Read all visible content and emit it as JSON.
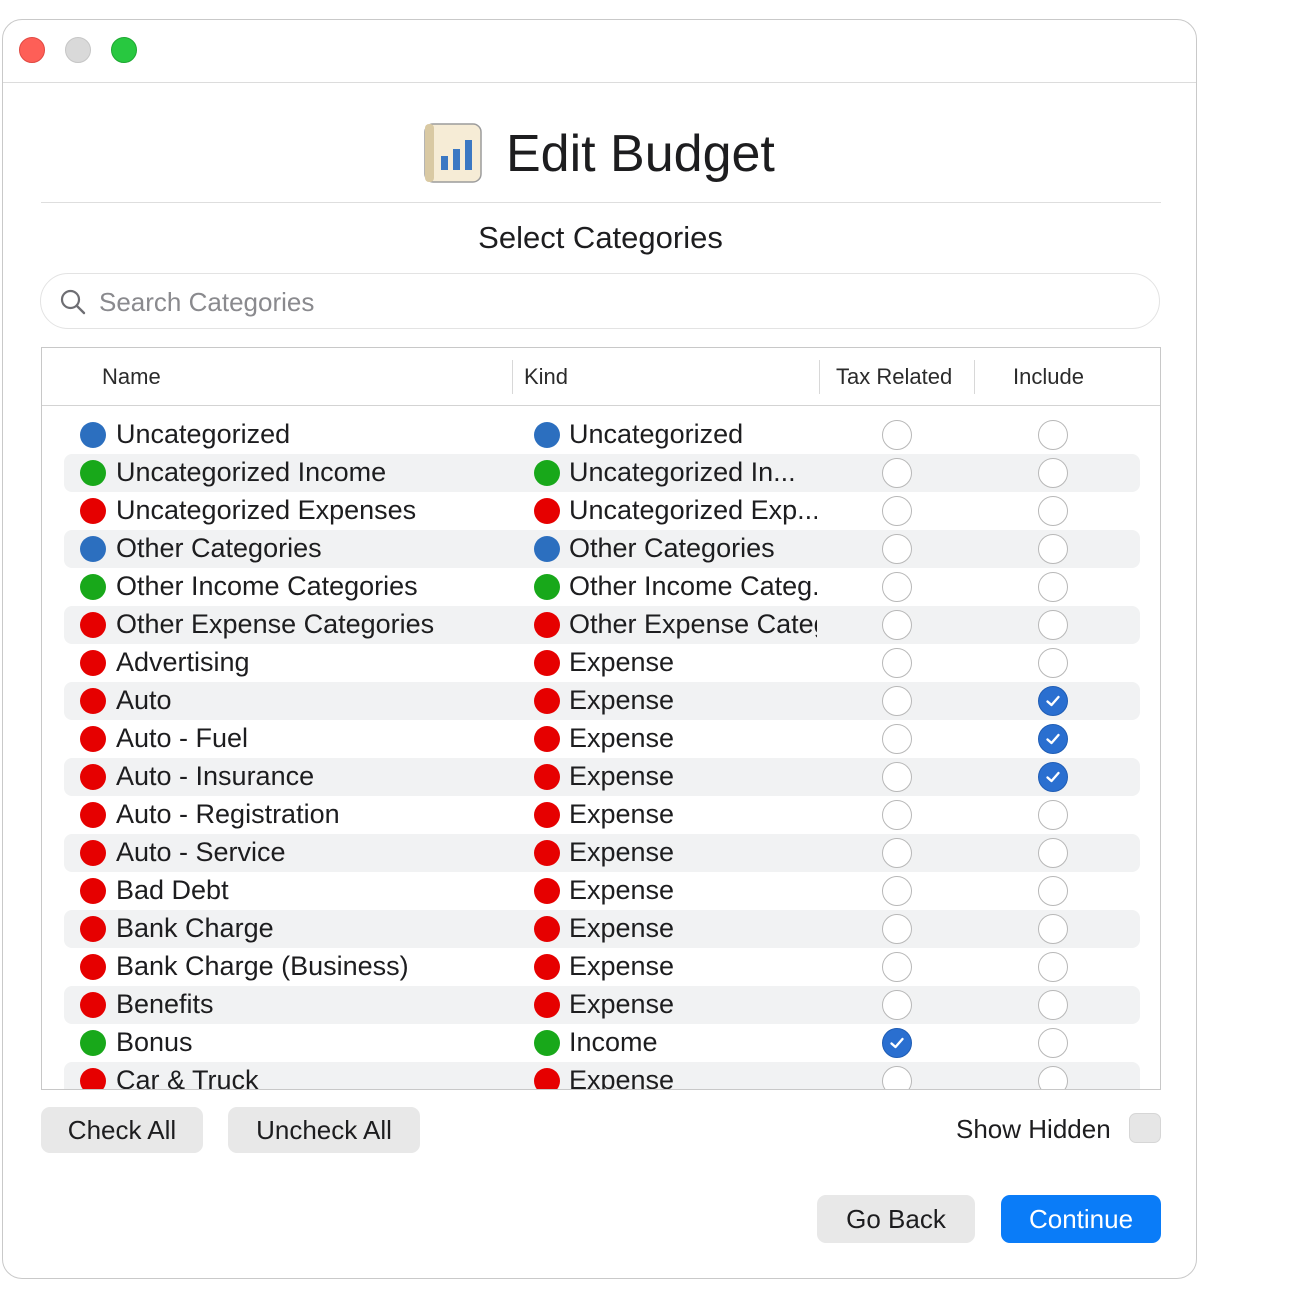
{
  "window": {
    "title": "Edit Budget"
  },
  "header": {
    "title": "Edit Budget",
    "subtitle": "Select Categories"
  },
  "search": {
    "placeholder": "Search Categories",
    "value": ""
  },
  "colors": {
    "blue": "#2c6fbf",
    "green": "#18a81a",
    "red": "#e60000",
    "accent": "#0a7cf8"
  },
  "table": {
    "columns": {
      "name": "Name",
      "kind": "Kind",
      "tax": "Tax Related",
      "include": "Include"
    },
    "rows": [
      {
        "name": "Uncategorized",
        "kind": "Uncategorized",
        "color": "blue",
        "tax": false,
        "include": false
      },
      {
        "name": "Uncategorized Income",
        "kind": "Uncategorized In...",
        "color": "green",
        "tax": false,
        "include": false
      },
      {
        "name": "Uncategorized Expenses",
        "kind": "Uncategorized Exp...",
        "color": "red",
        "tax": false,
        "include": false
      },
      {
        "name": "Other Categories",
        "kind": "Other Categories",
        "color": "blue",
        "tax": false,
        "include": false
      },
      {
        "name": "Other Income Categories",
        "kind": "Other Income Categ.",
        "color": "green",
        "tax": false,
        "include": false
      },
      {
        "name": "Other Expense Categories",
        "kind": "Other Expense Categ",
        "color": "red",
        "tax": false,
        "include": false
      },
      {
        "name": "Advertising",
        "kind": "Expense",
        "color": "red",
        "tax": false,
        "include": false
      },
      {
        "name": "Auto",
        "kind": "Expense",
        "color": "red",
        "tax": false,
        "include": true
      },
      {
        "name": "Auto - Fuel",
        "kind": "Expense",
        "color": "red",
        "tax": false,
        "include": true
      },
      {
        "name": "Auto - Insurance",
        "kind": "Expense",
        "color": "red",
        "tax": false,
        "include": true
      },
      {
        "name": "Auto - Registration",
        "kind": "Expense",
        "color": "red",
        "tax": false,
        "include": false
      },
      {
        "name": "Auto - Service",
        "kind": "Expense",
        "color": "red",
        "tax": false,
        "include": false
      },
      {
        "name": "Bad Debt",
        "kind": "Expense",
        "color": "red",
        "tax": false,
        "include": false
      },
      {
        "name": "Bank Charge",
        "kind": "Expense",
        "color": "red",
        "tax": false,
        "include": false
      },
      {
        "name": "Bank Charge (Business)",
        "kind": "Expense",
        "color": "red",
        "tax": false,
        "include": false
      },
      {
        "name": "Benefits",
        "kind": "Expense",
        "color": "red",
        "tax": false,
        "include": false
      },
      {
        "name": "Bonus",
        "kind": "Income",
        "color": "green",
        "tax": true,
        "include": false
      },
      {
        "name": "Car & Truck",
        "kind": "Expense",
        "color": "red",
        "tax": false,
        "include": false
      }
    ]
  },
  "footer": {
    "check_all": "Check All",
    "uncheck_all": "Uncheck All",
    "show_hidden": "Show Hidden",
    "show_hidden_checked": false,
    "go_back": "Go Back",
    "continue": "Continue"
  }
}
